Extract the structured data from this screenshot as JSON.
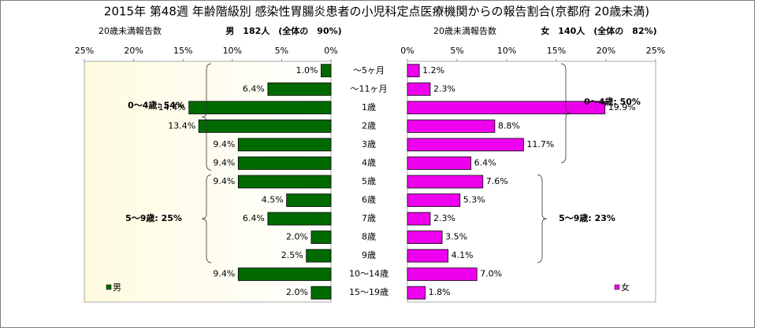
{
  "chart_data": [
    {
      "type": "hbar",
      "title": "2015年 第48週 年齢階級別 感染性胃腸炎患者の小児科定点医療機関からの報告割合(京都府 20歳未満)",
      "subtitle": [
        "20歳未満報告数",
        "男　182人　(全体の　90%)"
      ],
      "categories": [
        "〜5ヶ月",
        "〜11ヶ月",
        "1歳",
        "2歳",
        "3歳",
        "4歳",
        "5歳",
        "6歳",
        "7歳",
        "8歳",
        "9歳",
        "10〜14歳",
        "15〜19歳"
      ],
      "series": [
        {
          "name": "男",
          "color": "#006a00",
          "values": [
            1.0,
            6.4,
            14.4,
            13.4,
            9.4,
            9.4,
            9.4,
            4.5,
            6.4,
            2.0,
            2.5,
            9.4,
            2.0
          ],
          "value_labels": [
            "1.0%",
            "6.4%",
            "14.4%",
            "13.4%",
            "9.4%",
            "9.4%",
            "9.4%",
            "4.5%",
            "6.4%",
            "2.0%",
            "2.5%",
            "9.4%",
            "2.0%"
          ]
        }
      ],
      "xlim": [
        25,
        0
      ],
      "xticks": [
        {
          "value": 25,
          "label": "25%"
        },
        {
          "value": 20,
          "label": "20%"
        },
        {
          "value": 15,
          "label": "15%"
        },
        {
          "value": 10,
          "label": "10%"
        },
        {
          "value": 5,
          "label": "5%"
        },
        {
          "value": 0,
          "label": "0%"
        }
      ],
      "annotations": [
        "0〜4歳: 54%",
        "5〜9歳: 25%"
      ]
    },
    {
      "type": "hbar",
      "subtitle": [
        "20歳未満報告数",
        "女　140人　(全体の　82%)"
      ],
      "series": [
        {
          "name": "女",
          "color": "#ee00ee",
          "values": [
            1.2,
            2.3,
            19.9,
            8.8,
            11.7,
            6.4,
            7.6,
            5.3,
            2.3,
            3.5,
            4.1,
            7.0,
            1.8
          ],
          "value_labels": [
            "1.2%",
            "2.3%",
            "19.9%",
            "8.8%",
            "11.7%",
            "6.4%",
            "7.6%",
            "5.3%",
            "2.3%",
            "3.5%",
            "4.1%",
            "7.0%",
            "1.8%"
          ]
        }
      ],
      "xlim": [
        0,
        25
      ],
      "xticks": [
        {
          "value": 0,
          "label": "0%"
        },
        {
          "value": 5,
          "label": "5%"
        },
        {
          "value": 10,
          "label": "10%"
        },
        {
          "value": 15,
          "label": "15%"
        },
        {
          "value": 20,
          "label": "20%"
        },
        {
          "value": 25,
          "label": "25%"
        }
      ],
      "annotations": [
        "0〜4歳: 50%",
        "5〜9歳: 23%"
      ]
    }
  ]
}
